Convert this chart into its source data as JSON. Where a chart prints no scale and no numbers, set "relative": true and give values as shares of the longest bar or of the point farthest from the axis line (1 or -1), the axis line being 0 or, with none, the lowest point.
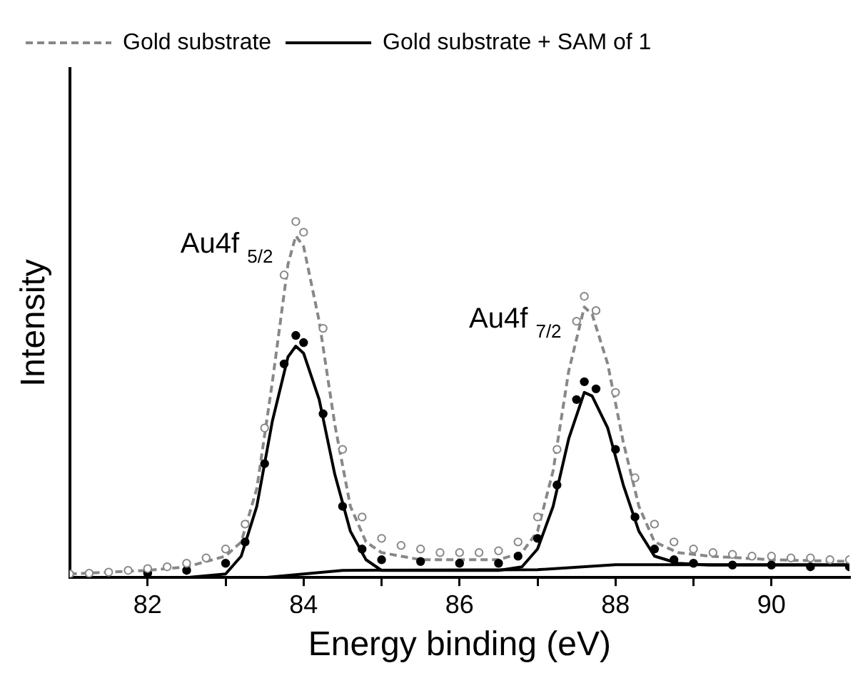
{
  "chart_data": {
    "type": "line",
    "relative": true,
    "xlabel": "Energy binding (eV)",
    "ylabel": "Intensity",
    "xlim": [
      81,
      91
    ],
    "xticks": [
      82,
      {
        "value": 83,
        "label": null
      },
      84,
      {
        "value": 85,
        "label": null
      },
      86,
      {
        "value": 87,
        "label": null
      },
      88,
      {
        "value": 89,
        "label": null
      },
      90
    ],
    "legend": "top left",
    "grid": false,
    "annotations": [
      {
        "text": "Au4f $_{5/2}$",
        "x": 83.9,
        "y": 1.0
      },
      {
        "text": "Au4f $_{7/2}$",
        "x": 87.6,
        "y": 0.79
      }
    ],
    "series": [
      {
        "name": "Gold substrate",
        "color": "#888888",
        "line_style": "dashed",
        "marker": "none",
        "x": [
          81,
          82,
          82.5,
          83,
          83.2,
          83.4,
          83.6,
          83.8,
          83.9,
          84.0,
          84.2,
          84.4,
          84.6,
          84.8,
          85,
          85.5,
          86,
          86.5,
          86.8,
          87,
          87.2,
          87.4,
          87.6,
          87.7,
          87.9,
          88.1,
          88.3,
          88.5,
          88.8,
          89.2,
          90,
          91
        ],
        "values": [
          0.01,
          0.02,
          0.03,
          0.06,
          0.1,
          0.25,
          0.55,
          0.88,
          0.96,
          0.93,
          0.72,
          0.43,
          0.2,
          0.1,
          0.07,
          0.05,
          0.05,
          0.05,
          0.07,
          0.13,
          0.3,
          0.58,
          0.76,
          0.74,
          0.6,
          0.38,
          0.2,
          0.1,
          0.07,
          0.06,
          0.05,
          0.045
        ]
      },
      {
        "name": "Gold substrate + SAM of 1",
        "color": "#000000",
        "line_style": "solid",
        "marker": "none",
        "x": [
          81,
          82,
          82.5,
          83,
          83.2,
          83.4,
          83.6,
          83.8,
          83.9,
          84.0,
          84.2,
          84.4,
          84.6,
          84.8,
          85,
          85.5,
          86,
          86.5,
          86.8,
          87,
          87.2,
          87.4,
          87.6,
          87.7,
          87.9,
          88.1,
          88.3,
          88.5,
          88.8,
          89.2,
          90,
          91
        ],
        "values": [
          0,
          0,
          0,
          0.01,
          0.06,
          0.2,
          0.44,
          0.62,
          0.65,
          0.63,
          0.5,
          0.29,
          0.13,
          0.05,
          0.02,
          0.02,
          0.02,
          0.02,
          0.03,
          0.08,
          0.2,
          0.39,
          0.52,
          0.51,
          0.42,
          0.26,
          0.13,
          0.06,
          0.04,
          0.035,
          0.035,
          0.035
        ]
      },
      {
        "type": "scatter",
        "color": "#888888",
        "marker": "circle",
        "x": [
          81,
          81.25,
          81.5,
          81.75,
          82,
          82.25,
          82.5,
          82.75,
          83,
          83.25,
          83.5,
          83.75,
          83.9,
          84,
          84.25,
          84.5,
          84.75,
          85,
          85.25,
          85.5,
          85.75,
          86,
          86.25,
          86.5,
          86.75,
          87,
          87.25,
          87.5,
          87.6,
          87.75,
          88,
          88.25,
          88.5,
          88.75,
          89,
          89.25,
          89.5,
          89.75,
          90,
          90.25,
          90.5,
          90.75,
          91
        ],
        "values": [
          0.01,
          0.012,
          0.015,
          0.02,
          0.025,
          0.03,
          0.04,
          0.055,
          0.08,
          0.15,
          0.42,
          0.85,
          1.0,
          0.97,
          0.7,
          0.36,
          0.17,
          0.11,
          0.09,
          0.08,
          0.07,
          0.07,
          0.07,
          0.075,
          0.1,
          0.17,
          0.36,
          0.72,
          0.79,
          0.75,
          0.52,
          0.28,
          0.15,
          0.1,
          0.08,
          0.07,
          0.065,
          0.06,
          0.06,
          0.055,
          0.055,
          0.05,
          0.05
        ]
      },
      {
        "type": "scatter",
        "color": "#000000",
        "marker": "circle",
        "x": [
          82,
          82.5,
          83,
          83.25,
          83.5,
          83.75,
          83.9,
          84,
          84.25,
          84.5,
          84.75,
          85,
          85.5,
          86,
          86.5,
          86.75,
          87,
          87.25,
          87.5,
          87.6,
          87.75,
          88,
          88.25,
          88.5,
          88.75,
          89,
          89.5,
          90,
          90.5,
          91
        ],
        "values": [
          0.012,
          0.02,
          0.04,
          0.1,
          0.32,
          0.6,
          0.68,
          0.66,
          0.46,
          0.2,
          0.08,
          0.05,
          0.045,
          0.04,
          0.04,
          0.06,
          0.11,
          0.26,
          0.5,
          0.55,
          0.53,
          0.36,
          0.17,
          0.08,
          0.05,
          0.04,
          0.035,
          0.035,
          0.03,
          0.03
        ]
      },
      {
        "type": "line",
        "color": "#000000",
        "line_style": "solid",
        "marker": "none",
        "x": [
          81,
          83.5,
          84.5,
          87,
          88,
          91
        ],
        "values": [
          0,
          0,
          0.02,
          0.022,
          0.036,
          0.036
        ]
      }
    ]
  }
}
